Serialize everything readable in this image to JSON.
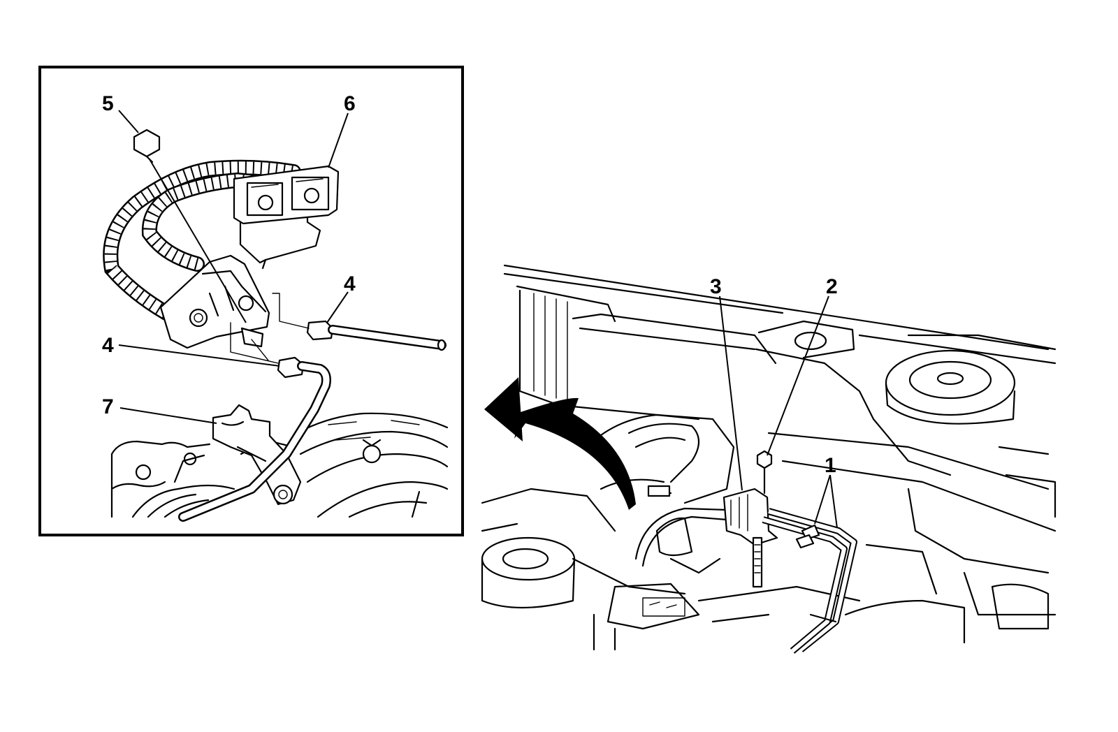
{
  "callouts": {
    "c1": "1",
    "c2": "2",
    "c3": "3",
    "c4a": "4",
    "c4b": "4",
    "c5": "5",
    "c6": "6",
    "c7": "7"
  }
}
